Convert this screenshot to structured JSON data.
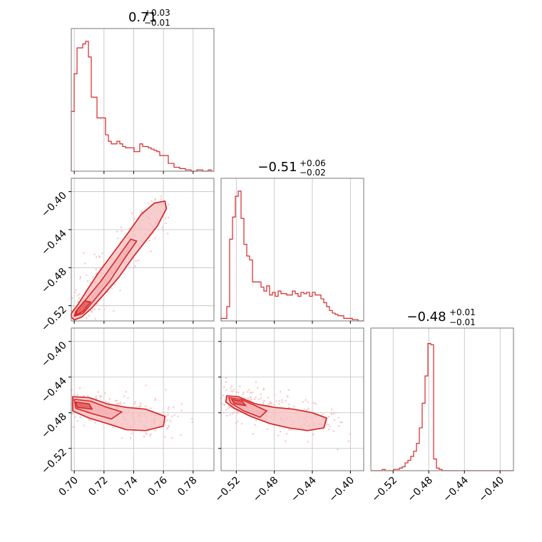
{
  "chart_data": {
    "type": "corner",
    "color": "#d62728",
    "fill_color": "#f2a4a5",
    "scatter_color": "#f7c6c7",
    "grid": true,
    "parameters": [
      {
        "index": 0,
        "range": [
          0.698,
          0.794
        ],
        "ticks": [
          0.7,
          0.72,
          0.74,
          0.76,
          0.78
        ],
        "tick_labels": [
          "0.70",
          "0.72",
          "0.74",
          "0.76",
          "0.78"
        ],
        "title_value": "0.71",
        "title_upper": "+0.03",
        "title_lower": "−0.01"
      },
      {
        "index": 1,
        "range": [
          -0.536,
          -0.386
        ],
        "ticks": [
          -0.52,
          -0.48,
          -0.44,
          -0.4
        ],
        "tick_labels": [
          "−0.52",
          "−0.48",
          "−0.44",
          "−0.40"
        ],
        "title_value": "−0.51",
        "title_upper": "+0.06",
        "title_lower": "−0.02"
      },
      {
        "index": 2,
        "range": [
          -0.545,
          -0.385
        ],
        "ticks": [
          -0.52,
          -0.48,
          -0.44,
          -0.4
        ],
        "tick_labels": [
          "−0.52",
          "−0.48",
          "−0.44",
          "−0.40"
        ],
        "title_value": "−0.48",
        "title_upper": "+0.01",
        "title_lower": "−0.01"
      }
    ],
    "histograms": [
      {
        "param": 0,
        "bin_width": 0.00192,
        "start": 0.698,
        "counts": [
          0.46,
          0.75,
          0.95,
          0.95,
          0.98,
          1.0,
          0.88,
          0.57,
          0.57,
          0.41,
          0.41,
          0.41,
          0.28,
          0.23,
          0.21,
          0.21,
          0.23,
          0.21,
          0.19,
          0.18,
          0.18,
          0.18,
          0.15,
          0.15,
          0.21,
          0.19,
          0.19,
          0.18,
          0.17,
          0.16,
          0.15,
          0.12,
          0.12,
          0.12,
          0.06,
          0.06,
          0.03,
          0.03,
          0.02,
          0.02,
          0.01,
          0.01,
          0.0,
          0.0,
          0.01,
          0.01,
          0.0,
          0.0,
          0.01,
          0.0
        ]
      },
      {
        "param": 1,
        "bin_width": 0.003,
        "start": -0.536,
        "counts": [
          0.02,
          0.02,
          0.11,
          0.63,
          0.8,
          0.96,
          1.0,
          0.79,
          0.59,
          0.5,
          0.47,
          0.3,
          0.3,
          0.3,
          0.26,
          0.23,
          0.27,
          0.2,
          0.22,
          0.19,
          0.23,
          0.21,
          0.21,
          0.2,
          0.2,
          0.23,
          0.21,
          0.19,
          0.22,
          0.21,
          0.22,
          0.19,
          0.22,
          0.2,
          0.2,
          0.17,
          0.14,
          0.11,
          0.08,
          0.06,
          0.05,
          0.04,
          0.04,
          0.02,
          0.02,
          0.02,
          0.01,
          0.01,
          0.0,
          0.0
        ]
      },
      {
        "param": 2,
        "bin_width": 0.0032,
        "start": -0.545,
        "counts": [
          0.0,
          0.0,
          0.0,
          0.0,
          0.01,
          0.0,
          0.0,
          0.0,
          0.01,
          0.01,
          0.02,
          0.03,
          0.06,
          0.08,
          0.11,
          0.15,
          0.21,
          0.33,
          0.52,
          0.73,
          0.98,
          0.97,
          0.09,
          0.02,
          0.01,
          0.0,
          0.0,
          0.0,
          0.0,
          0.0,
          0.0,
          0.0,
          0.0,
          0.0,
          0.0,
          0.0,
          0.0,
          0.0,
          0.0,
          0.0,
          0.0,
          0.0,
          0.0,
          0.0,
          0.0,
          0.0,
          0.0,
          0.0,
          0.0,
          0.0
        ]
      }
    ],
    "pairs": [
      {
        "x_param": 0,
        "y_param": 1,
        "contour_outer": [
          [
            0.698,
            -0.532
          ],
          [
            0.7,
            -0.535
          ],
          [
            0.705,
            -0.532
          ],
          [
            0.712,
            -0.522
          ],
          [
            0.72,
            -0.508
          ],
          [
            0.73,
            -0.49
          ],
          [
            0.74,
            -0.468
          ],
          [
            0.748,
            -0.452
          ],
          [
            0.756,
            -0.436
          ],
          [
            0.762,
            -0.418
          ],
          [
            0.761,
            -0.41
          ],
          [
            0.754,
            -0.412
          ],
          [
            0.745,
            -0.424
          ],
          [
            0.736,
            -0.444
          ],
          [
            0.726,
            -0.465
          ],
          [
            0.716,
            -0.486
          ],
          [
            0.708,
            -0.505
          ],
          [
            0.702,
            -0.52
          ],
          [
            0.698,
            -0.528
          ]
        ],
        "contour_mid": [
          [
            0.7,
            -0.531
          ],
          [
            0.706,
            -0.528
          ],
          [
            0.714,
            -0.513
          ],
          [
            0.724,
            -0.494
          ],
          [
            0.734,
            -0.47
          ],
          [
            0.742,
            -0.452
          ],
          [
            0.738,
            -0.45
          ],
          [
            0.728,
            -0.472
          ],
          [
            0.718,
            -0.494
          ],
          [
            0.708,
            -0.513
          ],
          [
            0.701,
            -0.526
          ]
        ],
        "contour_inner": [
          [
            0.701,
            -0.53
          ],
          [
            0.706,
            -0.526
          ],
          [
            0.711,
            -0.516
          ],
          [
            0.707,
            -0.515
          ],
          [
            0.702,
            -0.524
          ]
        ],
        "scatter_center_line": [
          [
            0.7,
            -0.53
          ],
          [
            0.76,
            -0.412
          ]
        ],
        "scatter_spread": 0.007
      },
      {
        "x_param": 0,
        "y_param": 2,
        "contour_outer": [
          [
            0.699,
            -0.462
          ],
          [
            0.71,
            -0.463
          ],
          [
            0.722,
            -0.47
          ],
          [
            0.735,
            -0.474
          ],
          [
            0.748,
            -0.476
          ],
          [
            0.761,
            -0.484
          ],
          [
            0.76,
            -0.495
          ],
          [
            0.748,
            -0.5
          ],
          [
            0.735,
            -0.499
          ],
          [
            0.722,
            -0.492
          ],
          [
            0.71,
            -0.486
          ],
          [
            0.699,
            -0.478
          ]
        ],
        "contour_mid": [
          [
            0.7,
            -0.465
          ],
          [
            0.711,
            -0.467
          ],
          [
            0.722,
            -0.474
          ],
          [
            0.732,
            -0.479
          ],
          [
            0.725,
            -0.487
          ],
          [
            0.712,
            -0.481
          ],
          [
            0.701,
            -0.475
          ]
        ],
        "contour_inner": [
          [
            0.701,
            -0.468
          ],
          [
            0.71,
            -0.47
          ],
          [
            0.712,
            -0.476
          ],
          [
            0.702,
            -0.474
          ]
        ],
        "scatter_center_line": [
          [
            0.7,
            -0.47
          ],
          [
            0.762,
            -0.49
          ]
        ],
        "scatter_spread": 0.01
      },
      {
        "x_param": 1,
        "y_param": 2,
        "contour_outer": [
          [
            -0.53,
            -0.461
          ],
          [
            -0.518,
            -0.462
          ],
          [
            -0.5,
            -0.47
          ],
          [
            -0.48,
            -0.474
          ],
          [
            -0.46,
            -0.476
          ],
          [
            -0.44,
            -0.48
          ],
          [
            -0.425,
            -0.486
          ],
          [
            -0.428,
            -0.497
          ],
          [
            -0.445,
            -0.5
          ],
          [
            -0.465,
            -0.497
          ],
          [
            -0.485,
            -0.492
          ],
          [
            -0.505,
            -0.484
          ],
          [
            -0.522,
            -0.475
          ],
          [
            -0.531,
            -0.468
          ]
        ],
        "contour_mid": [
          [
            -0.528,
            -0.463
          ],
          [
            -0.515,
            -0.465
          ],
          [
            -0.5,
            -0.472
          ],
          [
            -0.488,
            -0.478
          ],
          [
            -0.495,
            -0.485
          ],
          [
            -0.512,
            -0.478
          ],
          [
            -0.526,
            -0.469
          ]
        ],
        "contour_inner": [
          [
            -0.525,
            -0.465
          ],
          [
            -0.514,
            -0.467
          ],
          [
            -0.51,
            -0.472
          ],
          [
            -0.522,
            -0.47
          ]
        ],
        "scatter_center_line": [
          [
            -0.528,
            -0.466
          ],
          [
            -0.425,
            -0.492
          ]
        ],
        "scatter_spread": 0.01
      }
    ]
  }
}
